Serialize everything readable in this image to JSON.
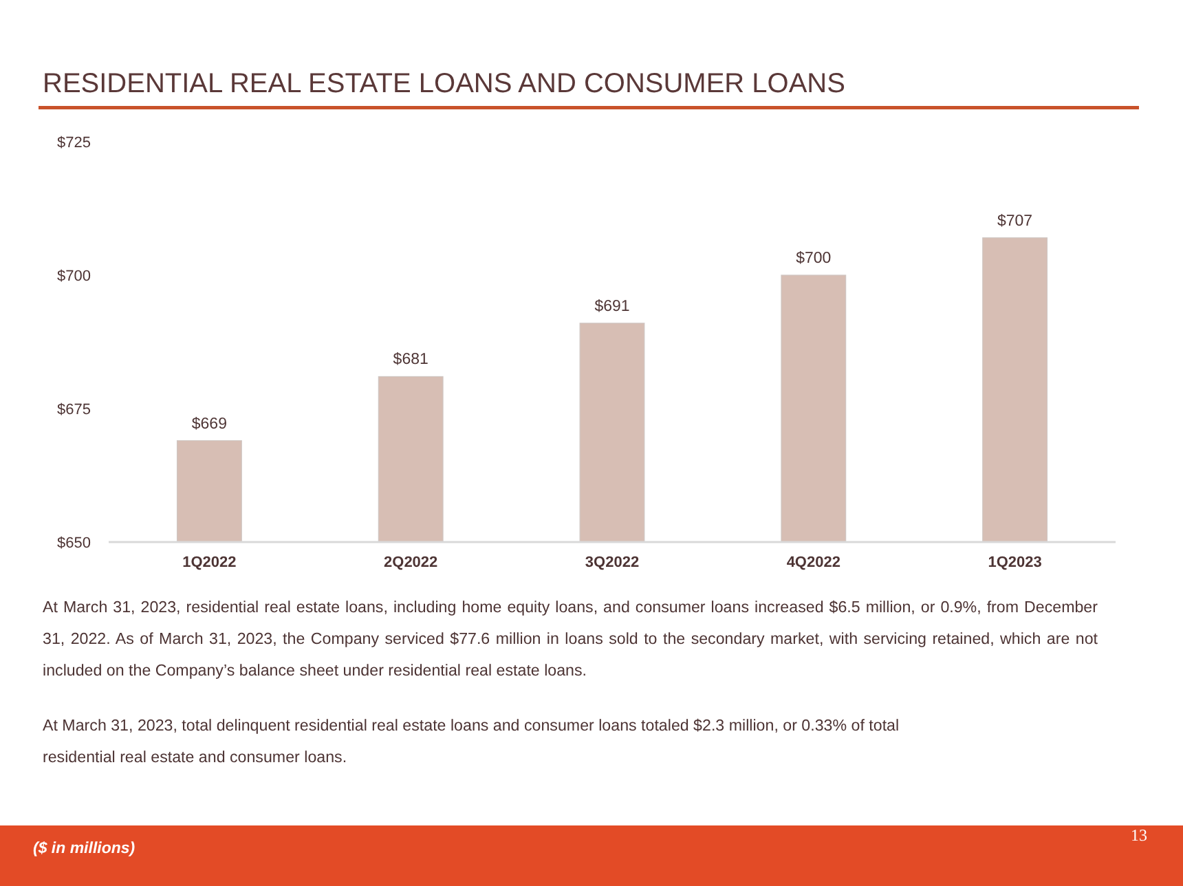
{
  "chart_data": {
    "type": "bar",
    "title": "RESIDENTIAL REAL ESTATE LOANS AND CONSUMER LOANS",
    "categories": [
      "1Q2022",
      "2Q2022",
      "3Q2022",
      "4Q2022",
      "1Q2023"
    ],
    "values": [
      669,
      681,
      691,
      700,
      707
    ],
    "value_labels": [
      "$669",
      "$681",
      "$691",
      "$700",
      "$707"
    ],
    "color": "#d7beb4",
    "ylim": [
      650,
      725
    ],
    "yticks": [
      {
        "value": 650,
        "label": "$650"
      },
      {
        "value": 675,
        "label": "$675"
      },
      {
        "value": 700,
        "label": "$700"
      },
      {
        "value": 725,
        "label": "$725"
      }
    ],
    "annotations": [
      "At March 31, 2023, residential real estate loans, including home equity loans, and consumer loans increased $6.5 million, or 0.9%, from December 31, 2022. As of March 31, 2023, the Company serviced $77.6 million in loans sold to the secondary market, with servicing retained, which are not included on the Company’s balance sheet under residential real estate loans.",
      "At March 31, 2023, total delinquent residential real estate loans and consumer loans totaled $2.3 million, or 0.33% of total residential real estate and consumer loans.",
      "($ in millions)",
      "13"
    ]
  }
}
